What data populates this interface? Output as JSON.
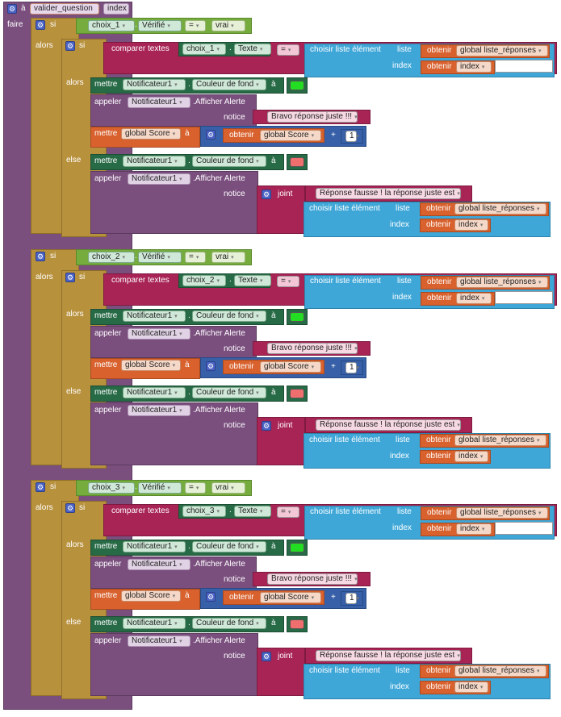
{
  "procedure": {
    "keyword": "à",
    "name": "valider_question",
    "param": "index",
    "do_label": "faire"
  },
  "labels": {
    "si": "si",
    "alors": "alors",
    "else": "else",
    "comparer": "comparer textes",
    "point": ".",
    "eq": "=",
    "choisir": "choisir liste élément",
    "liste": "liste",
    "index": "index",
    "obtenir": "obtenir",
    "mettre": "mettre",
    "a": "à",
    "appeler": "appeler",
    "afficher": ".Afficher Alerte",
    "notice": "notice",
    "joint": "joint",
    "plus": "+",
    "dd": "▾"
  },
  "values": {
    "verifie": "Vérifié",
    "vrai": "vrai",
    "texte": "Texte",
    "global_list": "global liste_réponses",
    "index_var": "index",
    "notif": "Notificateur1",
    "couleur": "Couleur de fond",
    "bravo": "Bravo réponse juste !!!",
    "mauvaise": "Réponse fausse ! la réponse juste est",
    "global_score": "global Score",
    "one": "1"
  },
  "colors": {
    "good": "#22dd22",
    "bad": "#ef6f6f"
  },
  "groups": [
    {
      "choice": "choix_1"
    },
    {
      "choice": "choix_2"
    },
    {
      "choice": "choix_3"
    }
  ]
}
